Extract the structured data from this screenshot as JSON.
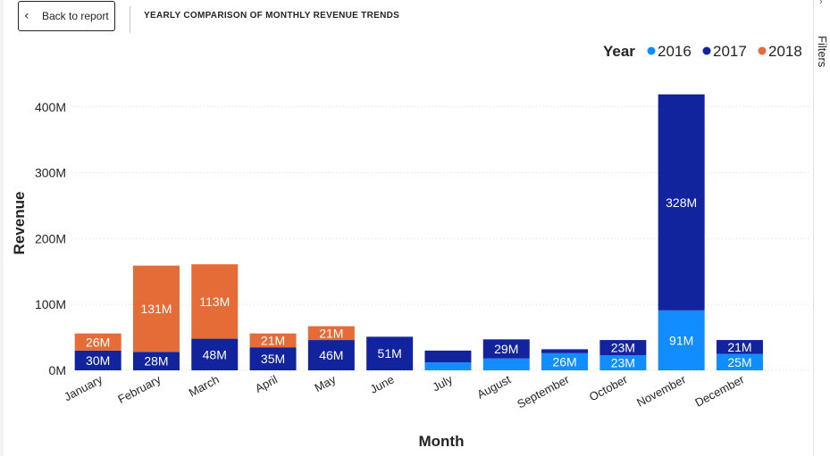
{
  "header": {
    "back_label": "Back to report",
    "title": "YEARLY COMPARISON OF MONTHLY REVENUE TRENDS"
  },
  "filters_pane": {
    "label": "Filters"
  },
  "colors": {
    "2016": "#118DFF",
    "2017": "#12239E",
    "2018": "#E66C37"
  },
  "chart_data": {
    "type": "bar",
    "stacked": true,
    "xlabel": "Month",
    "ylabel": "Revenue",
    "legend_title": "Year",
    "legend_position": "top-right",
    "ylim": [
      0,
      420
    ],
    "yticks": [
      0,
      100,
      200,
      300,
      400
    ],
    "ytick_labels": [
      "0M",
      "100M",
      "200M",
      "300M",
      "400M"
    ],
    "grid": true,
    "categories": [
      "January",
      "February",
      "March",
      "April",
      "May",
      "June",
      "July",
      "August",
      "September",
      "October",
      "November",
      "December"
    ],
    "series": [
      {
        "name": "2016",
        "values": [
          0,
          0,
          0,
          0,
          0,
          0,
          12,
          18,
          26,
          23,
          91,
          25
        ],
        "labels": [
          "",
          "",
          "",
          "",
          "",
          "",
          "",
          "",
          "26M",
          "23M",
          "91M",
          "25M"
        ]
      },
      {
        "name": "2017",
        "values": [
          30,
          28,
          48,
          35,
          46,
          51,
          18,
          29,
          6,
          23,
          328,
          21
        ],
        "labels": [
          "30M",
          "28M",
          "48M",
          "35M",
          "46M",
          "51M",
          "",
          "29M",
          "",
          "23M",
          "328M",
          "21M"
        ]
      },
      {
        "name": "2018",
        "values": [
          26,
          131,
          113,
          21,
          21,
          0,
          0,
          0,
          0,
          0,
          0,
          0
        ],
        "labels": [
          "26M",
          "131M",
          "113M",
          "21M",
          "21M",
          "",
          "",
          "",
          "",
          "",
          "",
          ""
        ]
      }
    ]
  }
}
